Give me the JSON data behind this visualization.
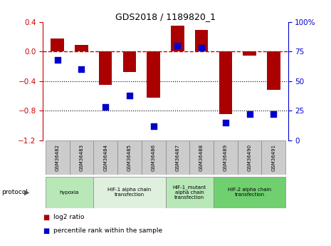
{
  "title": "GDS2018 / 1189820_1",
  "samples": [
    "GSM36482",
    "GSM36483",
    "GSM36484",
    "GSM36485",
    "GSM36486",
    "GSM36487",
    "GSM36488",
    "GSM36489",
    "GSM36490",
    "GSM36491"
  ],
  "log2_ratio": [
    0.18,
    0.09,
    -0.45,
    -0.28,
    -0.62,
    0.35,
    0.29,
    -0.85,
    -0.05,
    -0.52
  ],
  "percentile_rank": [
    68,
    60,
    28,
    38,
    12,
    80,
    78,
    15,
    22,
    22
  ],
  "left_ylim": [
    -1.2,
    0.4
  ],
  "right_ylim": [
    0,
    100
  ],
  "left_yticks": [
    -1.2,
    -0.8,
    -0.4,
    0.0,
    0.4
  ],
  "right_yticks": [
    0,
    25,
    50,
    75,
    100
  ],
  "protocols": [
    {
      "label": "hypoxia",
      "start": 0,
      "end": 2,
      "color": "#b8e8b8"
    },
    {
      "label": "HIF-1 alpha chain\ntransfection",
      "start": 2,
      "end": 5,
      "color": "#dff0df"
    },
    {
      "label": "HIF-1_mutant\nalpha chain\ntransfection",
      "start": 5,
      "end": 7,
      "color": "#b8e8b8"
    },
    {
      "label": "HIF-2 alpha chain\ntransfection",
      "start": 7,
      "end": 10,
      "color": "#70d070"
    }
  ],
  "bar_color": "#aa0000",
  "dot_color": "#0000cc",
  "bar_width": 0.55,
  "dot_size": 40,
  "hline_color": "#cc0000",
  "hline_style": "--",
  "gridline_color": "#000000",
  "gridline_style": ":",
  "tick_label_bg": "#cccccc",
  "left_tick_color": "#cc0000",
  "right_tick_color": "#0000cc"
}
